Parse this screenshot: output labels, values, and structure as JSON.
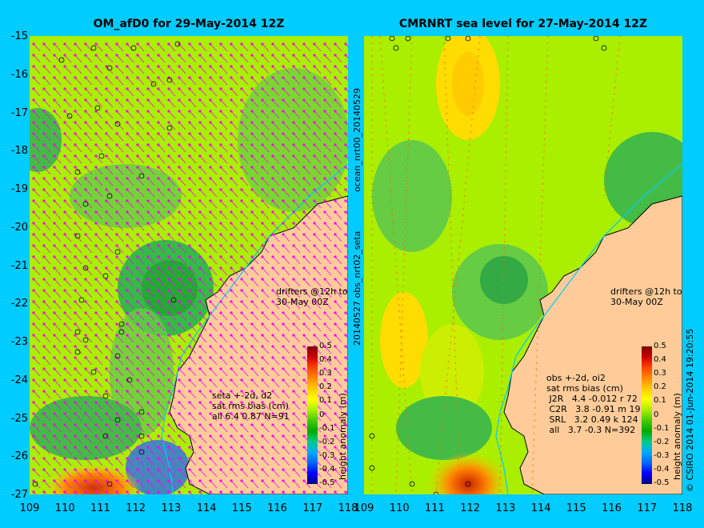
{
  "titles": {
    "left": "OM_afD0 for 29-May-2014 12Z",
    "right": "CMRNRT sea level  for 27-May-2014 12Z"
  },
  "axes": {
    "y_ticks": [
      "-15",
      "-16",
      "-17",
      "-18",
      "-19",
      "-20",
      "-21",
      "-22",
      "-23",
      "-24",
      "-25",
      "-26",
      "-27"
    ],
    "x_ticks_left": [
      "109",
      "110",
      "111",
      "112",
      "113",
      "114",
      "115",
      "116",
      "117",
      "118"
    ],
    "x_ticks_right": [
      "109",
      "110",
      "111",
      "112",
      "113",
      "114",
      "115",
      "116",
      "117",
      "118"
    ],
    "xlim": [
      109,
      118
    ],
    "ylim": [
      -27,
      -15
    ]
  },
  "colorbar": {
    "ticks": [
      "0.5",
      "0.4",
      "0.3",
      "0.2",
      "0.1",
      "0",
      "-0.1",
      "-0.2",
      "-0.3",
      "-0.4",
      "-0.5"
    ],
    "label": "height anomaly (m)",
    "colors": [
      "#000080",
      "#0000ff",
      "#0066ff",
      "#00aaff",
      "#00cc88",
      "#00aa00",
      "#44cc00",
      "#aaee00",
      "#ffff00",
      "#ffcc00",
      "#ff8800",
      "#ff4400",
      "#cc0000",
      "#800000"
    ]
  },
  "left_panel": {
    "stats": "seta +-2d, d2\nsat rms bias (cm)\nall 6.4 0.87 N=91",
    "drifters": "drifters @12h to\n30-May 00Z"
  },
  "right_panel": {
    "stats": "obs +-2d, oi2\nsat rms bias (cm)\n J2R   4.4 -0.012 r 72\n C2R   3.8 -0.91 m 19\n SRL   3.2 0.49 k 124\n all   3.7 -0.3 N=392",
    "drifters": "drifters @12h to\n30-May 00Z",
    "side_label_top": "ocean_nrt00_20140529",
    "side_label_bottom": "20140527 obs_nrt02_seta"
  },
  "footer": {
    "credit": "© CSIRO 2014   01-Jun-2014 19:20:55"
  },
  "colors": {
    "background": "#00ccff",
    "land": "#ffcc99",
    "sea_base": "#aaee00",
    "vector": "#ff00ff",
    "coast": "#000000",
    "isobath": "#00ccff"
  }
}
